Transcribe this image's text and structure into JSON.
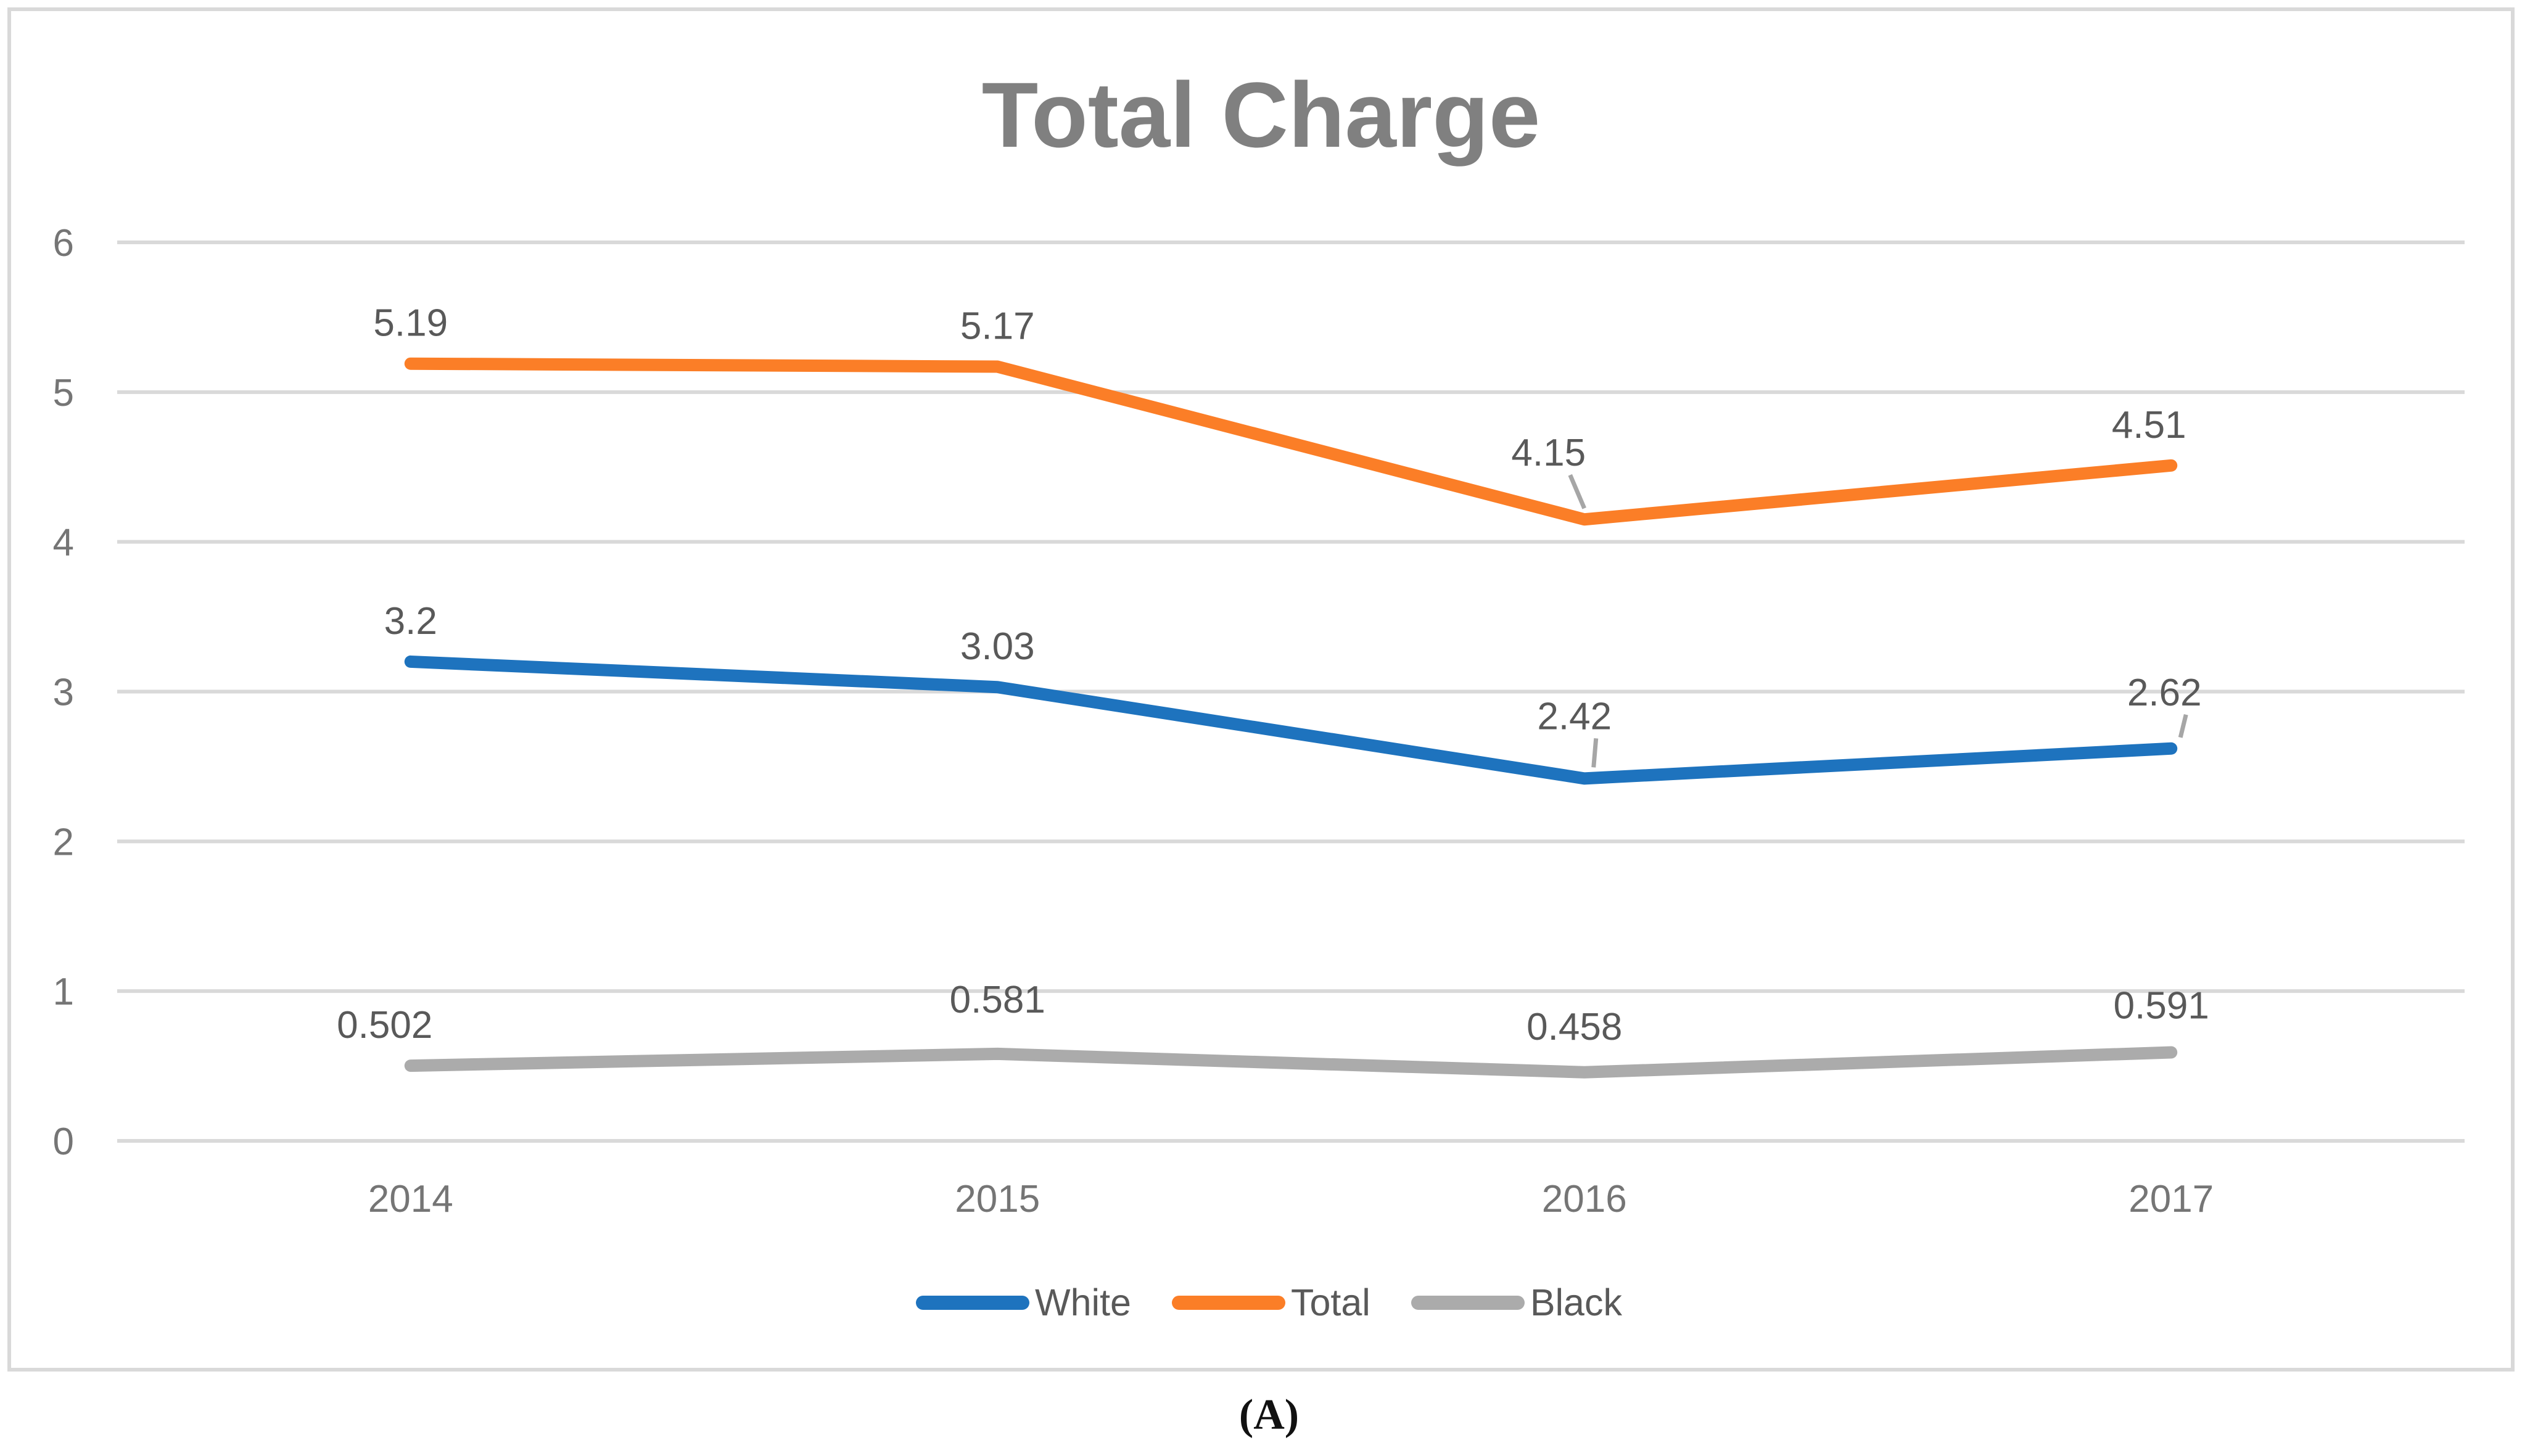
{
  "chart": {
    "title": "Total Charge"
  },
  "caption": "(A)",
  "chart_data": {
    "type": "line",
    "title": "Total Charge",
    "categories": [
      "2014",
      "2015",
      "2016",
      "2017"
    ],
    "series": [
      {
        "name": "White",
        "color": "#1E73BE",
        "values": [
          3.2,
          3.03,
          2.42,
          2.62
        ]
      },
      {
        "name": "Total",
        "color": "#FB7E27",
        "values": [
          5.19,
          5.17,
          4.15,
          4.51
        ]
      },
      {
        "name": "Black",
        "color": "#ABABAB",
        "values": [
          0.502,
          0.581,
          0.458,
          0.591
        ]
      }
    ],
    "y_ticks": [
      0,
      1,
      2,
      3,
      4,
      5,
      6
    ],
    "ylim": [
      0,
      6
    ],
    "grid": true,
    "legend_position": "bottom",
    "legend_order": [
      "White",
      "Total",
      "Black"
    ],
    "data_labels": true
  },
  "style": {
    "gridline_color": "#D9D9D9",
    "border_color": "#D9D9D9",
    "axis_tick_color": "#757575",
    "data_label_color": "#595959",
    "title_color": "#808080",
    "leader_line_color": "#A6A6A6",
    "background": "#FFFFFF"
  }
}
